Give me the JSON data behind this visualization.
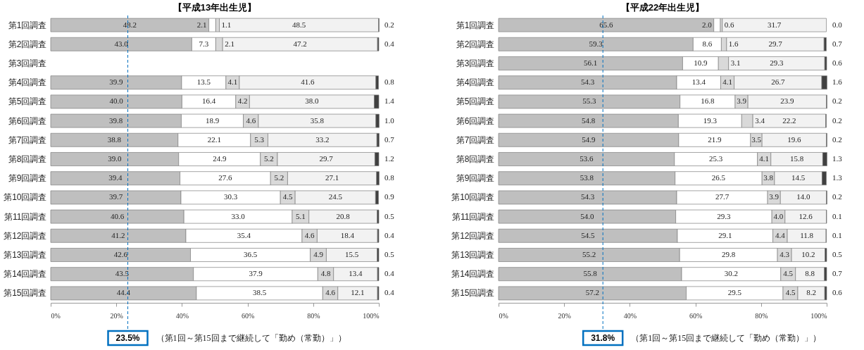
{
  "chart_data": [
    {
      "type": "bar",
      "orientation": "horizontal",
      "stacked": true,
      "title": "【平成13年出生児】",
      "categories": [
        "第1回調査",
        "第2回調査",
        "第3回調査",
        "第4回調査",
        "第5回調査",
        "第6回調査",
        "第7回調査",
        "第8回調査",
        "第9回調査",
        "第10回調査",
        "第11回調査",
        "第12回調査",
        "第13回調査",
        "第14回調査",
        "第15回調査"
      ],
      "series": [
        {
          "color": "#bfbfbf",
          "values": [
            48.2,
            43.0,
            null,
            39.9,
            40.0,
            39.8,
            38.8,
            39.0,
            39.4,
            39.7,
            40.6,
            41.2,
            42.6,
            43.5,
            44.4
          ],
          "value_labels": [
            "48.2",
            "43.0",
            null,
            "39.9",
            "40.0",
            "39.8",
            "38.8",
            "39.0",
            "39.4",
            "39.7",
            "40.6",
            "41.2",
            "42.6",
            "43.5",
            "44.4"
          ]
        },
        {
          "color": "#ffffff",
          "values": [
            2.1,
            7.3,
            null,
            13.5,
            16.4,
            18.9,
            22.1,
            24.9,
            27.6,
            30.3,
            33.0,
            35.4,
            36.5,
            37.9,
            38.5
          ],
          "value_labels": [
            "2.1",
            "7.3",
            null,
            "13.5",
            "16.4",
            "18.9",
            "22.1",
            "24.9",
            "27.6",
            "30.3",
            "33.0",
            "35.4",
            "36.5",
            "37.9",
            "38.5"
          ]
        },
        {
          "color": "#d9d9d9",
          "values": [
            1.1,
            2.1,
            null,
            4.1,
            4.2,
            4.6,
            5.3,
            5.2,
            5.2,
            4.5,
            5.1,
            4.6,
            4.9,
            4.8,
            4.6
          ],
          "value_labels": [
            "1.1",
            "2.1",
            null,
            "4.1",
            "4.2",
            "4.6",
            "5.3",
            "5.2",
            "5.2",
            "4.5",
            "5.1",
            "4.6",
            "4.9",
            "4.8",
            "4.6"
          ]
        },
        {
          "color": "#f2f2f2",
          "values": [
            48.5,
            47.2,
            null,
            41.6,
            38.0,
            35.8,
            33.2,
            29.7,
            27.1,
            24.5,
            20.8,
            18.4,
            15.5,
            13.4,
            12.1
          ],
          "value_labels": [
            "48.5",
            "47.2",
            null,
            "41.6",
            "38.0",
            "35.8",
            "33.2",
            "29.7",
            "27.1",
            "24.5",
            "20.8",
            "18.4",
            "15.5",
            "13.4",
            "12.1"
          ]
        },
        {
          "color": "#404040",
          "values": [
            0.2,
            0.4,
            null,
            0.8,
            1.4,
            1.0,
            0.7,
            1.2,
            0.8,
            0.9,
            0.5,
            0.4,
            0.5,
            0.4,
            0.4
          ],
          "value_labels": [
            "0.2",
            "0.4",
            null,
            "0.8",
            "1.4",
            "1.0",
            "0.7",
            "1.2",
            "0.8",
            "0.9",
            "0.5",
            "0.4",
            "0.5",
            "0.4",
            "0.4"
          ]
        }
      ],
      "xlim": [
        0,
        100
      ],
      "xticks": [
        {
          "value": 0,
          "label": "0%"
        },
        {
          "value": 20,
          "label": "20%"
        },
        {
          "value": 40,
          "label": "40%"
        },
        {
          "value": 60,
          "label": "60%"
        },
        {
          "value": 80,
          "label": "80%"
        },
        {
          "value": 100,
          "label": "100%"
        }
      ],
      "legend": false,
      "grid": false,
      "ref_lines": [
        {
          "axis": "x",
          "value": 23.5,
          "label": "23.5%",
          "color": "#0070c0",
          "line_style": "dashed"
        }
      ],
      "annotations": [
        "（第1回～第15回まで継続して「勤め（常勤）」）"
      ]
    },
    {
      "type": "bar",
      "orientation": "horizontal",
      "stacked": true,
      "title": "【平成22年出生児】",
      "categories": [
        "第1回調査",
        "第2回調査",
        "第3回調査",
        "第4回調査",
        "第5回調査",
        "第6回調査",
        "第7回調査",
        "第8回調査",
        "第9回調査",
        "第10回調査",
        "第11回調査",
        "第12回調査",
        "第13回調査",
        "第14回調査",
        "第15回調査"
      ],
      "series": [
        {
          "color": "#bfbfbf",
          "values": [
            65.6,
            59.3,
            56.1,
            54.3,
            55.3,
            54.8,
            54.9,
            53.6,
            53.8,
            54.3,
            54.0,
            54.5,
            55.2,
            55.8,
            57.2
          ],
          "value_labels": [
            "65.6",
            "59.3",
            "56.1",
            "54.3",
            "55.3",
            "54.8",
            "54.9",
            "53.6",
            "53.8",
            "54.3",
            "54.0",
            "54.5",
            "55.2",
            "55.8",
            "57.2"
          ]
        },
        {
          "color": "#ffffff",
          "values": [
            2.0,
            8.6,
            10.9,
            13.4,
            16.8,
            19.3,
            21.9,
            25.3,
            26.5,
            27.7,
            29.3,
            29.1,
            29.8,
            30.2,
            29.5
          ],
          "value_labels": [
            "2.0",
            "8.6",
            "10.9",
            "13.4",
            "16.8",
            "19.3",
            "21.9",
            "25.3",
            "26.5",
            "27.7",
            "29.3",
            "29.1",
            "29.8",
            "30.2",
            "29.5"
          ]
        },
        {
          "color": "#d9d9d9",
          "values": [
            0.6,
            1.6,
            3.1,
            4.1,
            3.9,
            3.4,
            3.5,
            4.1,
            3.8,
            3.9,
            4.0,
            4.4,
            4.3,
            4.5,
            4.5
          ],
          "value_labels": [
            "0.6",
            "1.6",
            "3.1",
            "4.1",
            "3.9",
            "3.4",
            "3.5",
            "4.1",
            "3.8",
            "3.9",
            "4.0",
            "4.4",
            "4.3",
            "4.5",
            "4.5"
          ]
        },
        {
          "color": "#f2f2f2",
          "values": [
            31.7,
            29.7,
            29.3,
            26.7,
            23.9,
            22.2,
            19.6,
            15.8,
            14.5,
            14.0,
            12.6,
            11.8,
            10.2,
            8.8,
            8.2
          ],
          "value_labels": [
            "31.7",
            "29.7",
            "29.3",
            "26.7",
            "23.9",
            "22.2",
            "19.6",
            "15.8",
            "14.5",
            "14.0",
            "12.6",
            "11.8",
            "10.2",
            "8.8",
            "8.2"
          ]
        },
        {
          "color": "#404040",
          "values": [
            0.0,
            0.7,
            0.6,
            1.6,
            0.2,
            0.2,
            0.2,
            1.3,
            1.3,
            0.2,
            0.1,
            0.1,
            0.5,
            0.7,
            0.6
          ],
          "value_labels": [
            "0.0",
            "0.7",
            "0.6",
            "1.6",
            "0.2",
            "0.2",
            "0.2",
            "1.3",
            "1.3",
            "0.2",
            "0.1",
            "0.1",
            "0.5",
            "0.7",
            "0.6"
          ]
        }
      ],
      "xlim": [
        0,
        100
      ],
      "xticks": [
        {
          "value": 0,
          "label": "0%"
        },
        {
          "value": 20,
          "label": "20%"
        },
        {
          "value": 40,
          "label": "40%"
        },
        {
          "value": 60,
          "label": "60%"
        },
        {
          "value": 80,
          "label": "80%"
        },
        {
          "value": 100,
          "label": "100%"
        }
      ],
      "legend": false,
      "grid": false,
      "ref_lines": [
        {
          "axis": "x",
          "value": 31.8,
          "label": "31.8%",
          "color": "#0070c0",
          "line_style": "dashed"
        }
      ],
      "annotations": [
        "（第1回～第15回まで継続して「勤め（常勤）」）"
      ]
    }
  ]
}
